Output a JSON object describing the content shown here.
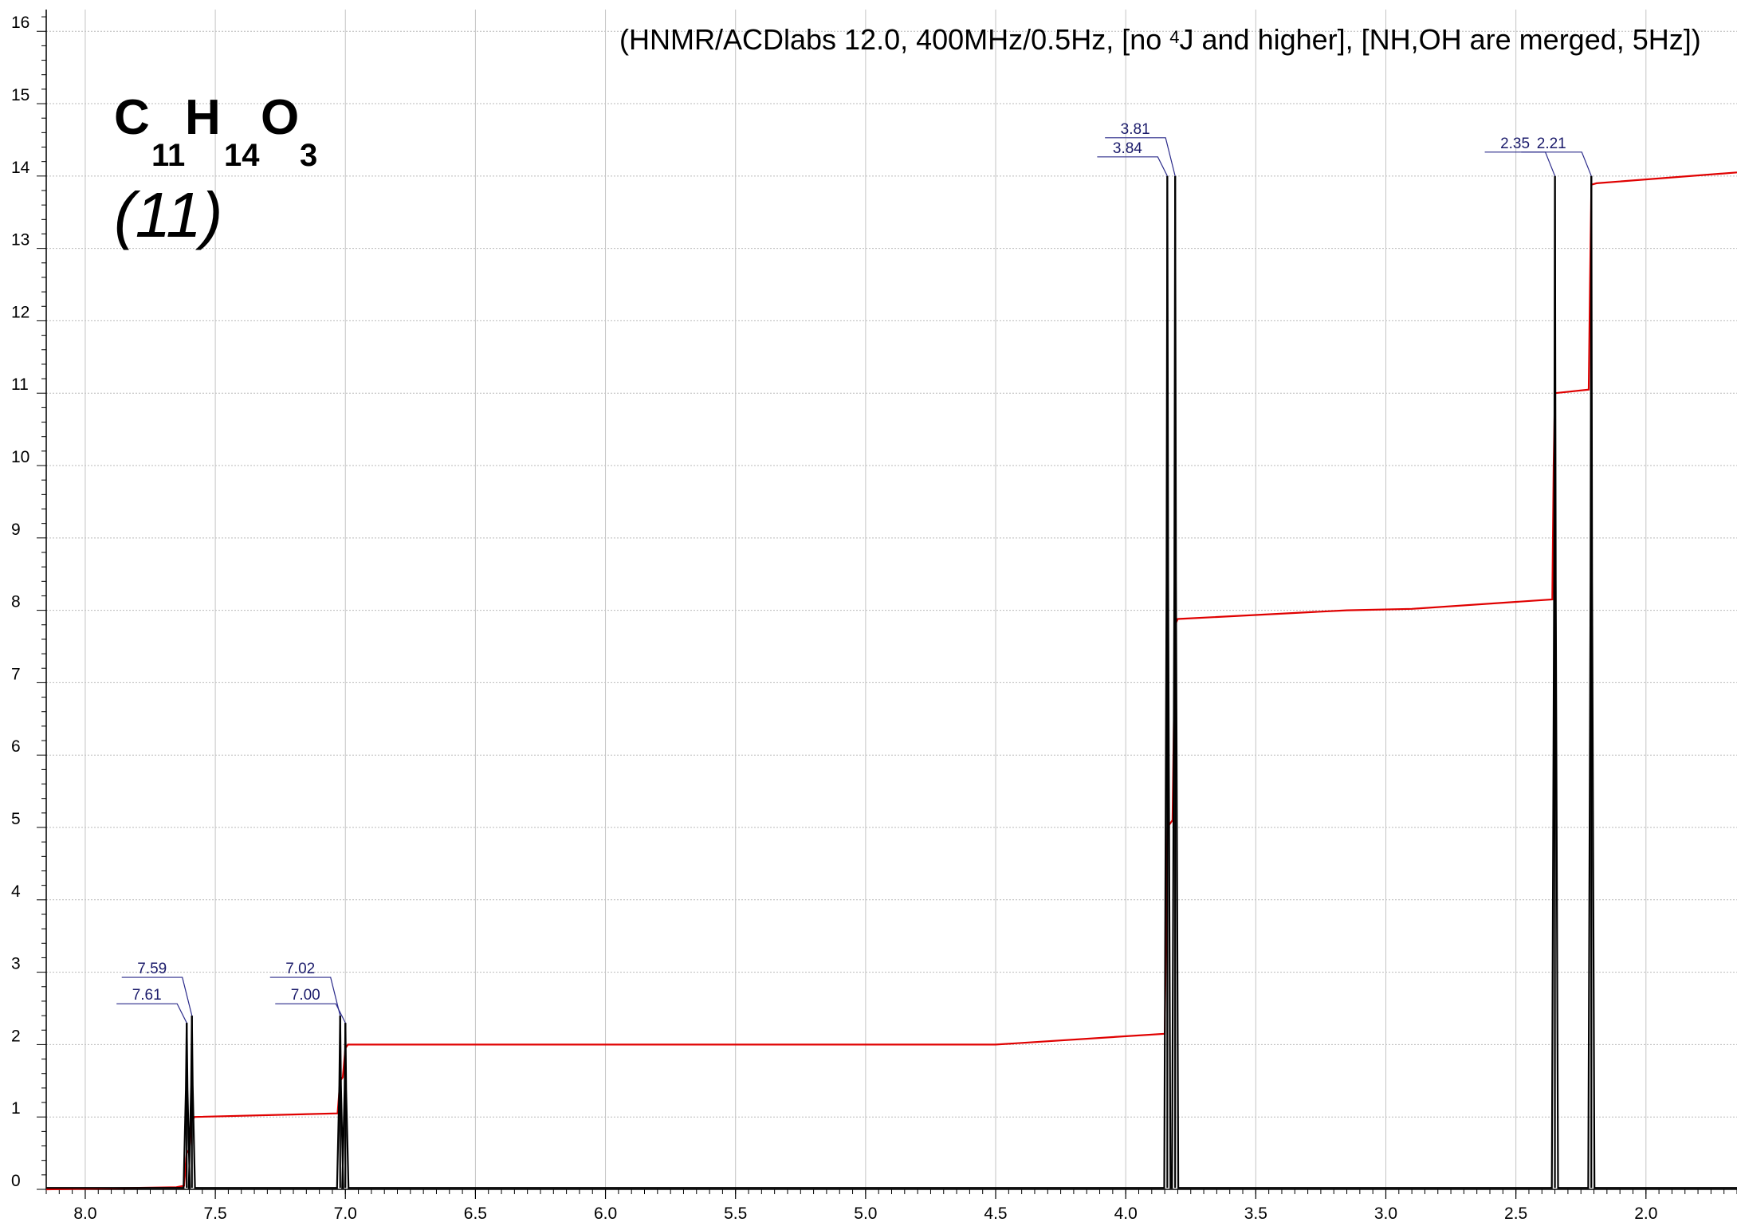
{
  "header": {
    "before": "(HNMR/ACDlabs 12.0, 400MHz/0.5Hz, [no ",
    "superscript": "4",
    "after": "J and higher], [NH,OH are merged, 5Hz])"
  },
  "formula": {
    "parts": [
      {
        "element": "C",
        "count": "11"
      },
      {
        "element": "H",
        "count": "14"
      },
      {
        "element": "O",
        "count": "3"
      }
    ]
  },
  "compound_label": "(11)",
  "colors": {
    "spectrum": "#000000",
    "integral": "#e00000",
    "peak_label": "#1b1b6b"
  },
  "chart_data": {
    "type": "line",
    "title": "",
    "xlabel": "",
    "ylabel": "",
    "x_reversed": true,
    "xlim": [
      8.15,
      1.65
    ],
    "ylim": [
      0,
      16.3
    ],
    "x_ticks": [
      "8.0",
      "7.5",
      "7.0",
      "6.5",
      "6.0",
      "5.5",
      "5.0",
      "4.5",
      "4.0",
      "3.5",
      "3.0",
      "2.5",
      "2.0"
    ],
    "y_ticks": [
      "0",
      "1",
      "2",
      "3",
      "4",
      "5",
      "6",
      "7",
      "8",
      "9",
      "10",
      "11",
      "12",
      "13",
      "14",
      "15",
      "16"
    ],
    "grid": true,
    "peaks": [
      {
        "shift": 7.61,
        "height": 2.3,
        "label": "7.61"
      },
      {
        "shift": 7.59,
        "height": 2.4,
        "label": "7.59"
      },
      {
        "shift": 7.02,
        "height": 2.4,
        "label": "7.02"
      },
      {
        "shift": 7.0,
        "height": 2.3,
        "label": "7.00"
      },
      {
        "shift": 3.84,
        "height": 14.0,
        "label": "3.84"
      },
      {
        "shift": 3.81,
        "height": 14.0,
        "label": "3.81"
      },
      {
        "shift": 2.35,
        "height": 14.0,
        "label": "2.35"
      },
      {
        "shift": 2.21,
        "height": 14.0,
        "label": "2.21"
      }
    ],
    "integral_curve": [
      [
        8.15,
        0.0
      ],
      [
        7.65,
        0.03
      ],
      [
        7.62,
        0.05
      ],
      [
        7.61,
        0.5
      ],
      [
        7.6,
        0.55
      ],
      [
        7.59,
        0.95
      ],
      [
        7.58,
        1.0
      ],
      [
        7.03,
        1.05
      ],
      [
        7.02,
        1.5
      ],
      [
        7.01,
        1.55
      ],
      [
        7.0,
        1.95
      ],
      [
        6.99,
        2.0
      ],
      [
        4.5,
        2.0
      ],
      [
        3.85,
        2.15
      ],
      [
        3.84,
        5.0
      ],
      [
        3.83,
        5.05
      ],
      [
        3.82,
        5.1
      ],
      [
        3.81,
        7.8
      ],
      [
        3.8,
        7.88
      ],
      [
        3.15,
        8.0
      ],
      [
        2.9,
        8.02
      ],
      [
        2.36,
        8.15
      ],
      [
        2.355,
        10.0
      ],
      [
        2.35,
        11.0
      ],
      [
        2.22,
        11.05
      ],
      [
        2.215,
        12.5
      ],
      [
        2.21,
        13.88
      ],
      [
        2.19,
        13.9
      ],
      [
        1.65,
        14.05
      ]
    ]
  }
}
